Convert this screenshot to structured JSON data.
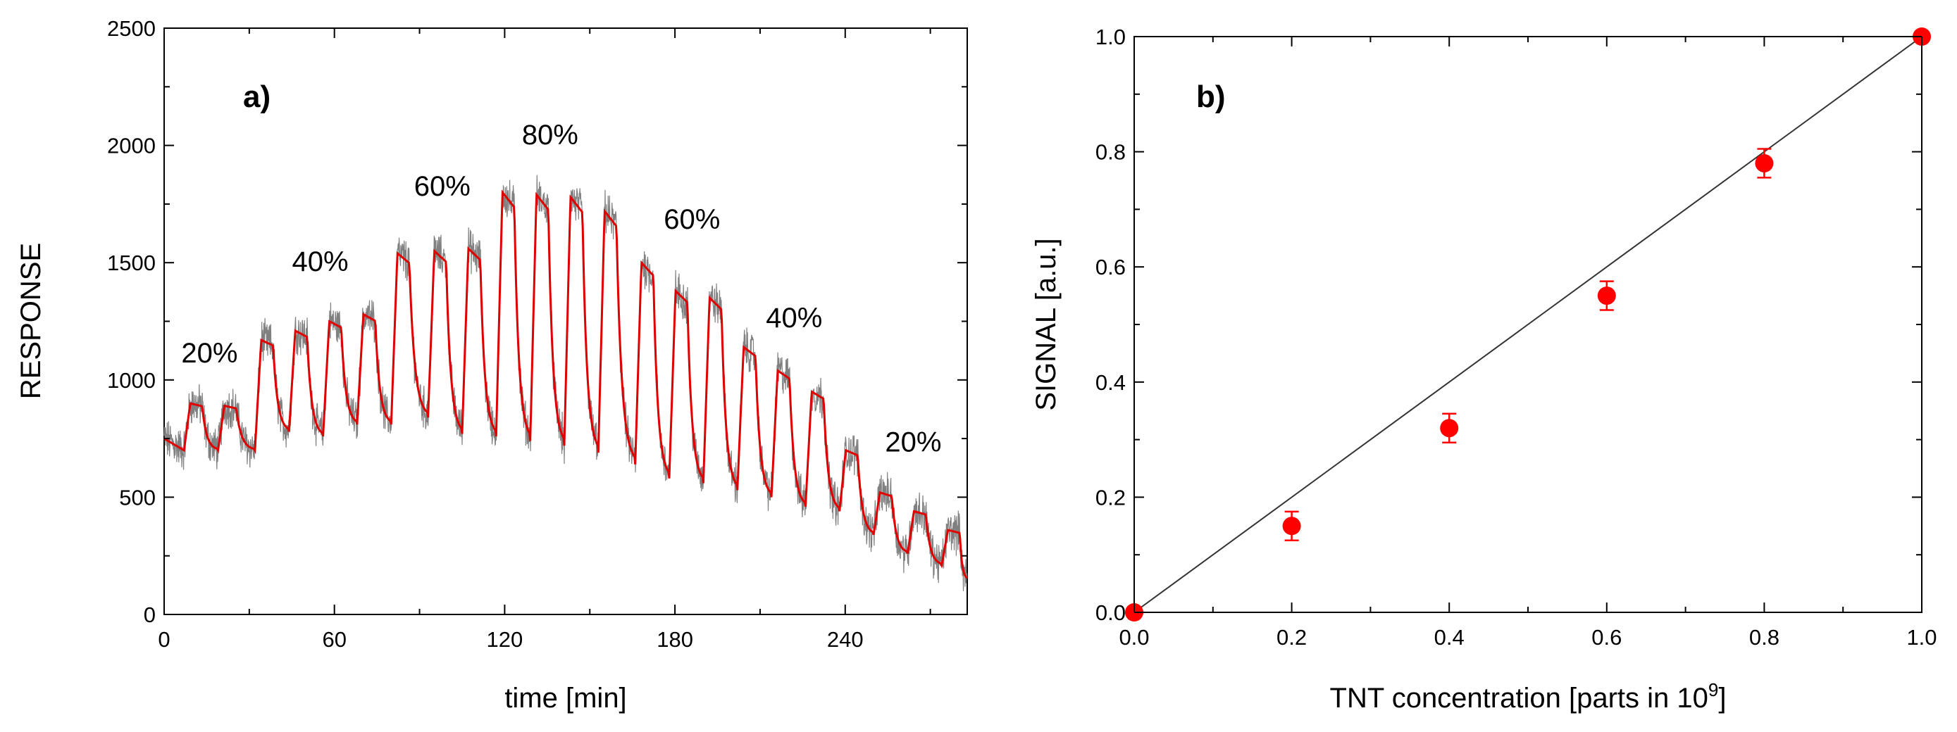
{
  "chart_data": [
    {
      "type": "line",
      "panel_label": "a)",
      "xlabel": "time [min]",
      "ylabel": "RESPONSE",
      "xlim": [
        0,
        283
      ],
      "ylim": [
        0,
        2500
      ],
      "xticks": [
        0,
        60,
        120,
        180,
        240
      ],
      "yticks": [
        0,
        500,
        1000,
        1500,
        2000,
        2500
      ],
      "grid": false,
      "colors": {
        "raw": "#808080",
        "smooth": "#e00000"
      },
      "baseline_start": 750,
      "baseline_end": 150,
      "pulses": [
        {
          "start": 7,
          "peak": 900,
          "valley": 700
        },
        {
          "start": 19,
          "peak": 890,
          "valley": 700
        },
        {
          "start": 32,
          "peak": 1170,
          "valley": 780
        },
        {
          "start": 44,
          "peak": 1210,
          "valley": 760
        },
        {
          "start": 56,
          "peak": 1250,
          "valley": 810
        },
        {
          "start": 68,
          "peak": 1280,
          "valley": 810
        },
        {
          "start": 80,
          "peak": 1540,
          "valley": 840
        },
        {
          "start": 93,
          "peak": 1550,
          "valley": 770
        },
        {
          "start": 105,
          "peak": 1560,
          "valley": 760
        },
        {
          "start": 117,
          "peak": 1800,
          "valley": 740
        },
        {
          "start": 129,
          "peak": 1790,
          "valley": 720
        },
        {
          "start": 141,
          "peak": 1780,
          "valley": 690
        },
        {
          "start": 153,
          "peak": 1720,
          "valley": 640
        },
        {
          "start": 166,
          "peak": 1500,
          "valley": 580
        },
        {
          "start": 178,
          "peak": 1380,
          "valley": 560
        },
        {
          "start": 190,
          "peak": 1350,
          "valley": 530
        },
        {
          "start": 202,
          "peak": 1140,
          "valley": 500
        },
        {
          "start": 214,
          "peak": 1040,
          "valley": 460
        },
        {
          "start": 226,
          "peak": 950,
          "valley": 440
        },
        {
          "start": 238,
          "peak": 700,
          "valley": 340
        },
        {
          "start": 250,
          "peak": 520,
          "valley": 260
        },
        {
          "start": 262,
          "peak": 440,
          "valley": 210
        },
        {
          "start": 274,
          "peak": 360,
          "valley": 150
        }
      ],
      "annotations": [
        {
          "text": "20%",
          "x": 16,
          "y": 1075
        },
        {
          "text": "40%",
          "x": 55,
          "y": 1465
        },
        {
          "text": "60%",
          "x": 98,
          "y": 1785
        },
        {
          "text": "80%",
          "x": 136,
          "y": 2005
        },
        {
          "text": "60%",
          "x": 186,
          "y": 1645
        },
        {
          "text": "40%",
          "x": 222,
          "y": 1225
        },
        {
          "text": "20%",
          "x": 264,
          "y": 695
        }
      ]
    },
    {
      "type": "scatter",
      "panel_label": "b)",
      "xlabel": "TNT concentration [parts in 10",
      "xlabel_superscript": "9",
      "xlabel_suffix": "]",
      "ylabel": "SIGNAL [a.u.]",
      "xlim": [
        0,
        1
      ],
      "ylim": [
        0,
        1
      ],
      "xticks": [
        "0.0",
        "0.2",
        "0.4",
        "0.6",
        "0.8",
        "1.0"
      ],
      "yticks": [
        "0.0",
        "0.2",
        "0.4",
        "0.6",
        "0.8",
        "1.0"
      ],
      "grid": false,
      "colors": {
        "points": "#ff0000",
        "fit": "#333333"
      },
      "points": [
        {
          "x": 0.0,
          "y": 0.0,
          "err": 0.0
        },
        {
          "x": 0.2,
          "y": 0.15,
          "err": 0.025
        },
        {
          "x": 0.4,
          "y": 0.32,
          "err": 0.025
        },
        {
          "x": 0.6,
          "y": 0.55,
          "err": 0.025
        },
        {
          "x": 0.8,
          "y": 0.78,
          "err": 0.025
        },
        {
          "x": 1.0,
          "y": 1.0,
          "err": 0.0
        }
      ],
      "fit_line": {
        "x": [
          0,
          1
        ],
        "y": [
          0,
          1
        ]
      }
    }
  ]
}
